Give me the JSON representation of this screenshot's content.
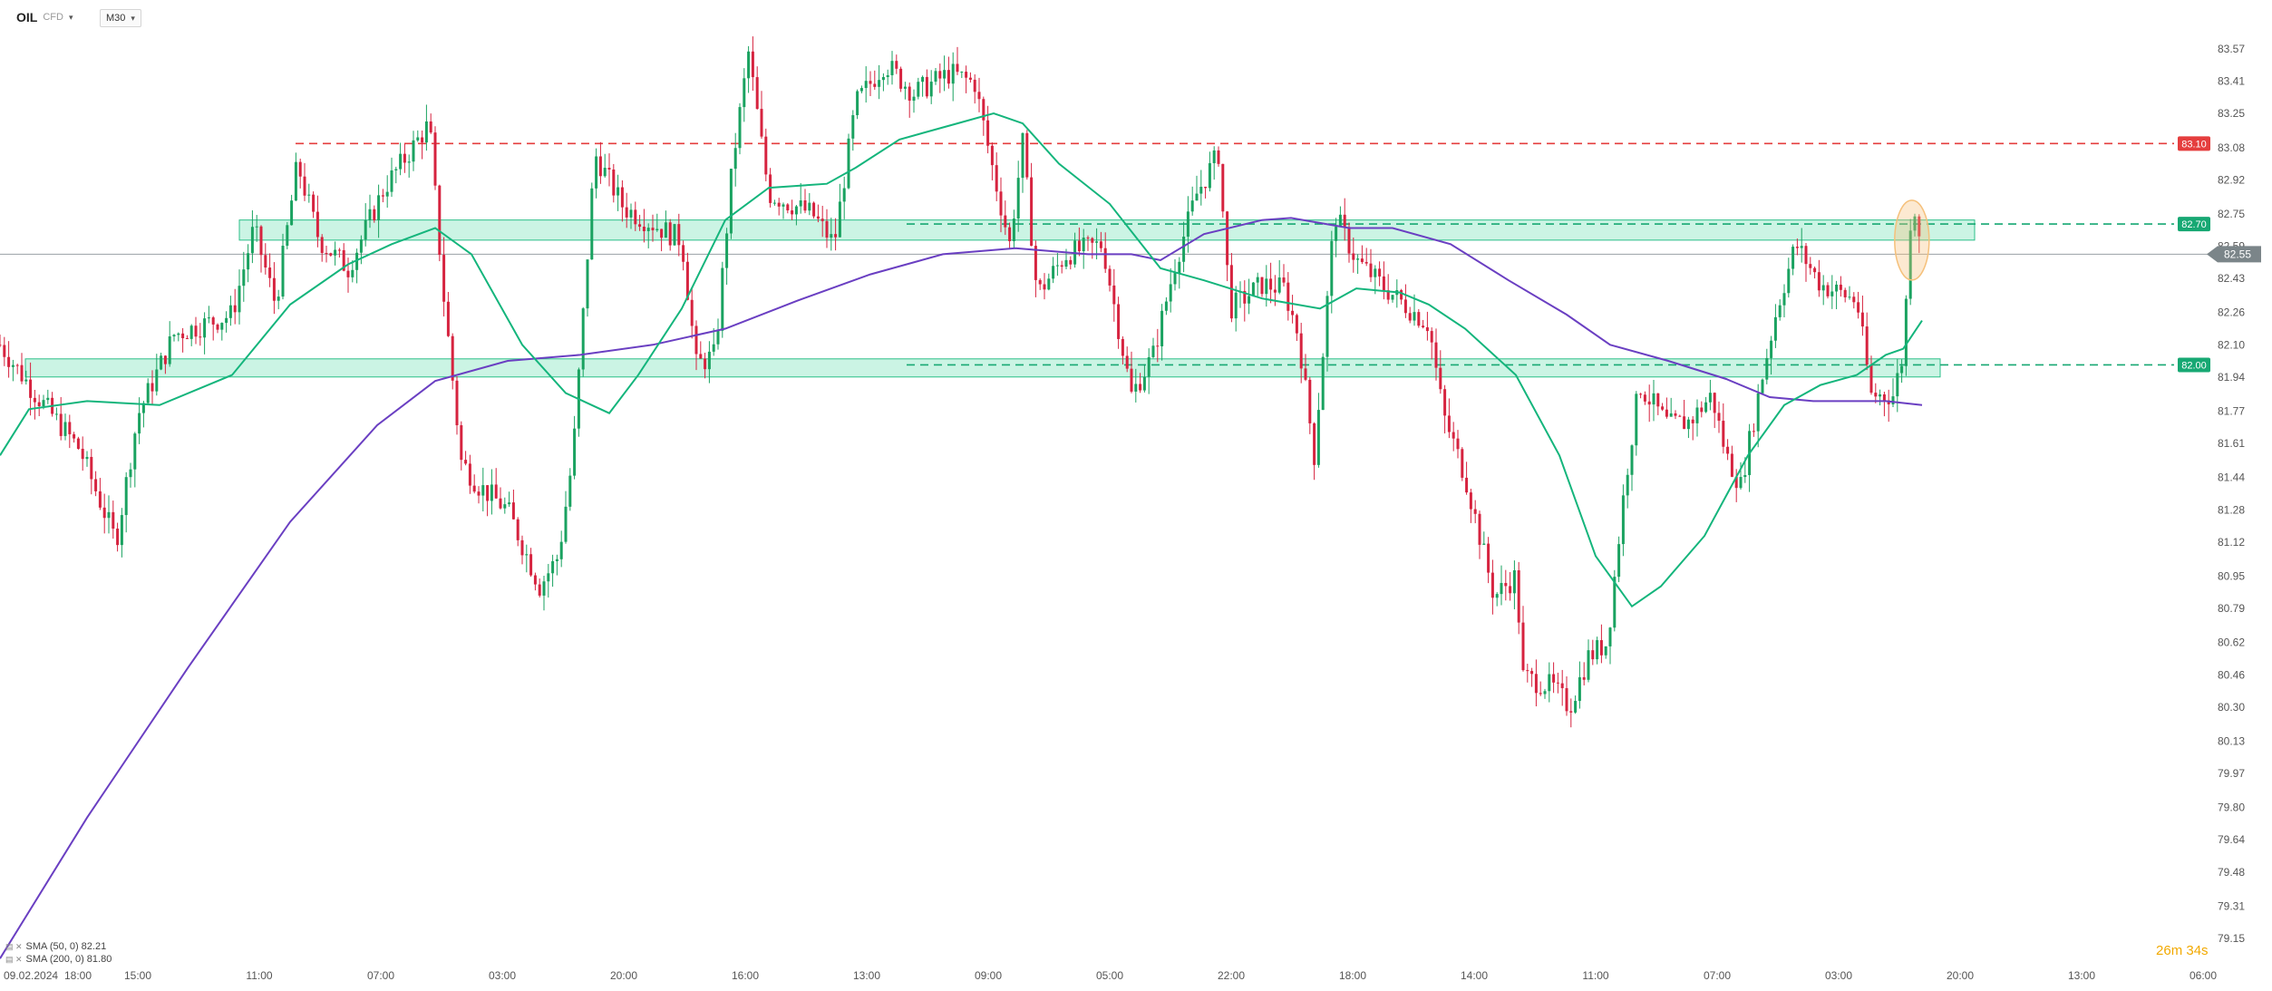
{
  "header": {
    "symbol": "OIL",
    "symbol_sub": "CFD",
    "timeframe": "M30",
    "caret": "▾"
  },
  "legend": {
    "icons": "▤ ✕",
    "sma50": "SMA (50, 0) 82.21",
    "sma200": "SMA (200, 0) 81.80"
  },
  "countdown": {
    "minutes": "26",
    "m": "m",
    "seconds": "34",
    "s": "s"
  },
  "colors": {
    "background": "#ffffff",
    "candle_up": "#1aa260",
    "candle_down": "#d6233f",
    "sma50": "#14b57c",
    "sma200": "#6a3fc2",
    "resistance": "#e53e3e",
    "support": "#17a873",
    "zone_fill": "#a8ecd2",
    "zone_border": "#2bbf88",
    "current_price_bg": "#7b8589",
    "highlight": "#f5c07a"
  },
  "chart_data": {
    "type": "candlestick",
    "timeframe": "M30",
    "start_date_label": "09.02.2024",
    "y_axis_ticks": [
      83.57,
      83.41,
      83.25,
      83.08,
      82.92,
      82.75,
      82.59,
      82.43,
      82.26,
      82.1,
      81.94,
      81.77,
      81.61,
      81.44,
      81.28,
      81.12,
      80.95,
      80.79,
      80.62,
      80.46,
      80.3,
      80.13,
      79.97,
      79.8,
      79.64,
      79.48,
      79.31,
      79.15
    ],
    "ylim": [
      79.15,
      83.57
    ],
    "x_axis_ticks": [
      "18:00",
      "15:00",
      "11:00",
      "07:00",
      "03:00",
      "20:00",
      "16:00",
      "13:00",
      "09:00",
      "05:00",
      "22:00",
      "18:00",
      "14:00",
      "11:00",
      "07:00",
      "03:00",
      "20:00",
      "13:00",
      "06:00"
    ],
    "current_price": 82.55,
    "horizontal_levels": [
      {
        "value": 83.1,
        "label": "83.10",
        "style": "dashed",
        "color": "#e53e3e"
      },
      {
        "value": 82.7,
        "label": "82.70",
        "style": "dashed",
        "color": "#17a873"
      },
      {
        "value": 82.0,
        "label": "82.00",
        "style": "dashed",
        "color": "#17a873"
      }
    ],
    "zones": [
      {
        "low": 82.62,
        "high": 82.72
      },
      {
        "low": 81.94,
        "high": 82.03
      }
    ],
    "indicators": [
      {
        "name": "SMA (50, 0)",
        "value": 82.21
      },
      {
        "name": "SMA (200, 0)",
        "value": 81.8
      }
    ],
    "price_path": [
      [
        0,
        82.1
      ],
      [
        25,
        81.85
      ],
      [
        55,
        81.58
      ],
      [
        80,
        81.12
      ],
      [
        95,
        81.75
      ],
      [
        120,
        82.15
      ],
      [
        160,
        82.25
      ],
      [
        175,
        82.68
      ],
      [
        190,
        82.3
      ],
      [
        205,
        83.0
      ],
      [
        220,
        82.62
      ],
      [
        240,
        82.48
      ],
      [
        265,
        82.88
      ],
      [
        296,
        83.2
      ],
      [
        305,
        82.4
      ],
      [
        318,
        81.52
      ],
      [
        330,
        81.4
      ],
      [
        350,
        81.28
      ],
      [
        372,
        80.9
      ],
      [
        385,
        81.05
      ],
      [
        395,
        81.55
      ],
      [
        410,
        83.05
      ],
      [
        430,
        82.78
      ],
      [
        470,
        82.62
      ],
      [
        480,
        82.0
      ],
      [
        493,
        82.05
      ],
      [
        505,
        83.0
      ],
      [
        516,
        83.55
      ],
      [
        530,
        82.85
      ],
      [
        560,
        82.75
      ],
      [
        575,
        82.6
      ],
      [
        590,
        83.3
      ],
      [
        610,
        83.5
      ],
      [
        630,
        83.35
      ],
      [
        655,
        83.45
      ],
      [
        672,
        83.4
      ],
      [
        685,
        82.95
      ],
      [
        696,
        82.6
      ],
      [
        705,
        83.1
      ],
      [
        715,
        82.35
      ],
      [
        735,
        82.55
      ],
      [
        760,
        82.6
      ],
      [
        772,
        82.15
      ],
      [
        780,
        81.85
      ],
      [
        795,
        82.05
      ],
      [
        810,
        82.5
      ],
      [
        825,
        82.85
      ],
      [
        840,
        83.05
      ],
      [
        848,
        82.28
      ],
      [
        870,
        82.4
      ],
      [
        885,
        82.38
      ],
      [
        895,
        82.15
      ],
      [
        906,
        81.55
      ],
      [
        920,
        82.75
      ],
      [
        935,
        82.52
      ],
      [
        955,
        82.38
      ],
      [
        985,
        82.2
      ],
      [
        995,
        81.75
      ],
      [
        1010,
        81.45
      ],
      [
        1030,
        80.85
      ],
      [
        1045,
        80.95
      ],
      [
        1050,
        80.45
      ],
      [
        1070,
        80.4
      ],
      [
        1082,
        80.3
      ],
      [
        1095,
        80.55
      ],
      [
        1108,
        80.62
      ],
      [
        1120,
        81.4
      ],
      [
        1130,
        81.9
      ],
      [
        1150,
        81.7
      ],
      [
        1165,
        81.72
      ],
      [
        1180,
        81.85
      ],
      [
        1190,
        81.55
      ],
      [
        1200,
        81.4
      ],
      [
        1215,
        81.95
      ],
      [
        1225,
        82.28
      ],
      [
        1238,
        82.6
      ],
      [
        1255,
        82.4
      ],
      [
        1280,
        82.32
      ],
      [
        1290,
        81.85
      ],
      [
        1305,
        81.85
      ],
      [
        1312,
        82.05
      ],
      [
        1318,
        82.85
      ],
      [
        1325,
        82.6
      ]
    ],
    "sma50_path": [
      [
        0,
        81.55
      ],
      [
        20,
        81.78
      ],
      [
        60,
        81.82
      ],
      [
        110,
        81.8
      ],
      [
        160,
        81.95
      ],
      [
        200,
        82.3
      ],
      [
        240,
        82.5
      ],
      [
        270,
        82.6
      ],
      [
        300,
        82.68
      ],
      [
        325,
        82.55
      ],
      [
        360,
        82.1
      ],
      [
        390,
        81.86
      ],
      [
        420,
        81.76
      ],
      [
        440,
        81.95
      ],
      [
        470,
        82.28
      ],
      [
        500,
        82.72
      ],
      [
        530,
        82.88
      ],
      [
        570,
        82.9
      ],
      [
        590,
        82.98
      ],
      [
        620,
        83.12
      ],
      [
        660,
        83.2
      ],
      [
        685,
        83.25
      ],
      [
        705,
        83.2
      ],
      [
        730,
        83.0
      ],
      [
        765,
        82.8
      ],
      [
        800,
        82.48
      ],
      [
        830,
        82.42
      ],
      [
        870,
        82.33
      ],
      [
        910,
        82.28
      ],
      [
        935,
        82.38
      ],
      [
        965,
        82.36
      ],
      [
        985,
        82.3
      ],
      [
        1010,
        82.18
      ],
      [
        1045,
        81.95
      ],
      [
        1075,
        81.55
      ],
      [
        1100,
        81.05
      ],
      [
        1125,
        80.8
      ],
      [
        1145,
        80.9
      ],
      [
        1175,
        81.15
      ],
      [
        1205,
        81.55
      ],
      [
        1230,
        81.8
      ],
      [
        1255,
        81.9
      ],
      [
        1280,
        81.95
      ],
      [
        1300,
        82.05
      ],
      [
        1312,
        82.08
      ],
      [
        1325,
        82.22
      ]
    ],
    "sma200_path": [
      [
        0,
        79.05
      ],
      [
        60,
        79.75
      ],
      [
        130,
        80.5
      ],
      [
        200,
        81.22
      ],
      [
        260,
        81.7
      ],
      [
        300,
        81.92
      ],
      [
        350,
        82.02
      ],
      [
        400,
        82.05
      ],
      [
        450,
        82.1
      ],
      [
        500,
        82.18
      ],
      [
        550,
        82.32
      ],
      [
        600,
        82.45
      ],
      [
        650,
        82.55
      ],
      [
        700,
        82.58
      ],
      [
        750,
        82.55
      ],
      [
        780,
        82.55
      ],
      [
        800,
        82.52
      ],
      [
        830,
        82.65
      ],
      [
        870,
        82.72
      ],
      [
        890,
        82.73
      ],
      [
        930,
        82.68
      ],
      [
        960,
        82.68
      ],
      [
        1000,
        82.6
      ],
      [
        1040,
        82.42
      ],
      [
        1080,
        82.25
      ],
      [
        1110,
        82.1
      ],
      [
        1150,
        82.02
      ],
      [
        1190,
        81.93
      ],
      [
        1220,
        81.84
      ],
      [
        1250,
        81.82
      ],
      [
        1280,
        81.82
      ],
      [
        1300,
        81.82
      ],
      [
        1325,
        81.8
      ]
    ]
  }
}
